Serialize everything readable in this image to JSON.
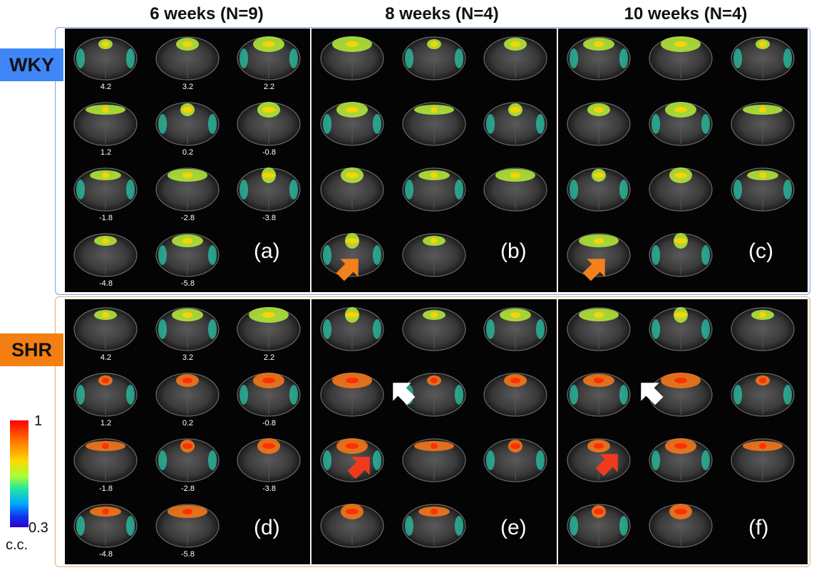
{
  "column_headers": [
    "6 weeks (N=9)",
    "8 weeks (N=4)",
    "10 weeks (N=4)"
  ],
  "groups": [
    {
      "label": "WKY",
      "label_color": "#3f86f7",
      "frame_color": "#7aa4e0",
      "panel_labels": [
        "(a)",
        "(b)",
        "(c)"
      ]
    },
    {
      "label": "SHR",
      "label_color": "#f37f12",
      "frame_color": "#e0b071",
      "panel_labels": [
        "(d)",
        "(e)",
        "(f)"
      ]
    }
  ],
  "slice_positions": [
    "4.2",
    "3.2",
    "2.2",
    "1.2",
    "0.2",
    "-0.8",
    "-1.8",
    "-2.8",
    "-3.8",
    "-4.8",
    "-5.8"
  ],
  "colorbar": {
    "max_label": "1",
    "min_label": "0.3",
    "unit_label": "c.c."
  },
  "arrow_colors": {
    "orange": "#f3801a",
    "red": "#f03a1e",
    "white": "#ffffff"
  }
}
